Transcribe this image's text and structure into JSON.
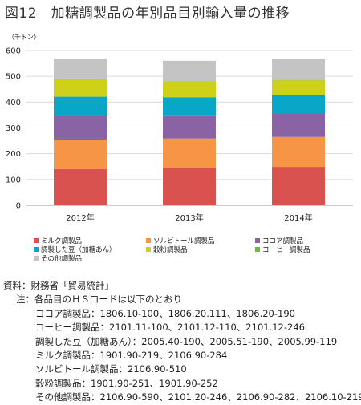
{
  "title": "図12　加糖調製品の年別品目別輸入量の推移",
  "unit": "（千トン）",
  "colors": {
    "milk": "#d9524f",
    "sorbitol": "#f79546",
    "cocoa": "#8a63a5",
    "beans": "#0aa6c7",
    "grain": "#ced01a",
    "coffee": "#69b94f",
    "other": "#c4c4c4"
  },
  "chart_data": {
    "type": "bar",
    "stacked": true,
    "categories": [
      "2012年",
      "2013年",
      "2014年"
    ],
    "ylim": [
      0,
      600
    ],
    "yticks": [
      0,
      100,
      200,
      300,
      400,
      500,
      600
    ],
    "series": [
      {
        "name": "ミルク調製品",
        "key": "milk",
        "values": [
          140,
          144,
          149
        ]
      },
      {
        "name": "ソルビトール調製品",
        "key": "sorbitol",
        "values": [
          115,
          115,
          116
        ]
      },
      {
        "name": "ココア調製品",
        "key": "cocoa",
        "values": [
          93,
          87,
          91
        ]
      },
      {
        "name": "調製した豆（加糖あん）",
        "key": "beans",
        "values": [
          73,
          73,
          72
        ]
      },
      {
        "name": "穀粉調製品",
        "key": "grain",
        "values": [
          66,
          60,
          56
        ]
      },
      {
        "name": "コーヒー調製品",
        "key": "coffee",
        "values": [
          1,
          1,
          1
        ]
      },
      {
        "name": "その他調製品",
        "key": "other",
        "values": [
          78,
          80,
          81
        ]
      }
    ],
    "grid": true,
    "legend": "bottom"
  },
  "legend_rows": [
    [
      "ミルク調製品",
      "ソルビトール調製品",
      "ココア調製品"
    ],
    [
      "調製した豆（加糖あん）",
      "穀粉調製品",
      "コーヒー調製品"
    ],
    [
      "その他調製品"
    ]
  ],
  "notes": {
    "source": "資料：財務省「貿易統計」",
    "note_head": "注：各品目のＨＳコードは以下のとおり",
    "items": [
      "ココア調製品：1806.10-100、1806.20.111、1806.20-190",
      "コーヒー調製品：2101.11-100、2101.12-110、2101.12-246",
      "調製した豆（加糖あん）：2005.40-190、2005.51-190、2005.99-119",
      "ミルク調製品：1901.90-219、2106.90-284",
      "ソルビトール調製品：2106.90-510",
      "穀粉調製品：1901.90-251、1901.90-252",
      "その他調製品：2106.90-590、2101.20-246、2106.90-282、2106.10-219"
    ]
  }
}
